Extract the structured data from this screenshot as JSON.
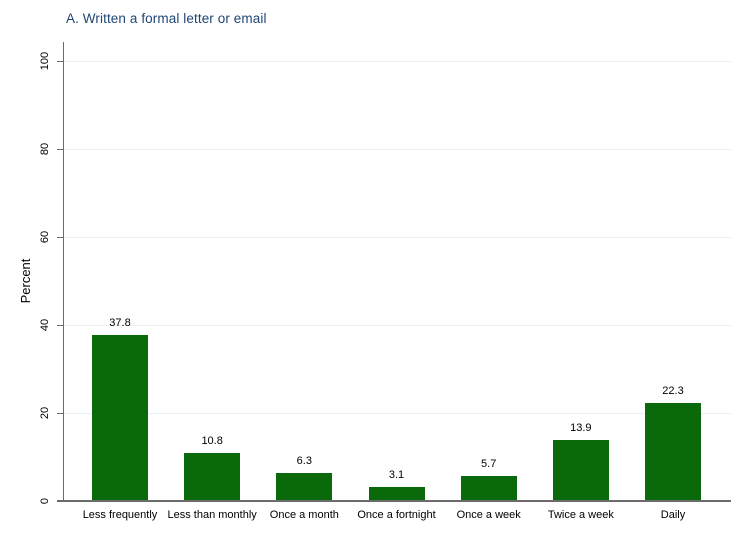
{
  "chart_data": {
    "type": "bar",
    "title": "A. Written a formal letter or email",
    "categories": [
      "Less frequently",
      "Less than monthly",
      "Once a month",
      "Once a fortnight",
      "Once a week",
      "Twice a week",
      "Daily"
    ],
    "values": [
      37.8,
      10.8,
      6.3,
      3.1,
      5.7,
      13.9,
      22.3
    ],
    "value_labels": [
      "37.8",
      "10.8",
      "6.3",
      "3.1",
      "5.7",
      "13.9",
      "22.3"
    ],
    "ylabel": "Percent",
    "xlabel": "",
    "yticks": [
      0,
      20,
      40,
      60,
      80,
      100
    ],
    "ylim": [
      0,
      100
    ],
    "grid": true,
    "legend": "none",
    "colors": {
      "bar": "#0a690a",
      "title": "#1e4575",
      "grid": "#e8f0f4",
      "axis": "#6b6b6b",
      "text": "#000000",
      "background": "#ffffff"
    }
  }
}
